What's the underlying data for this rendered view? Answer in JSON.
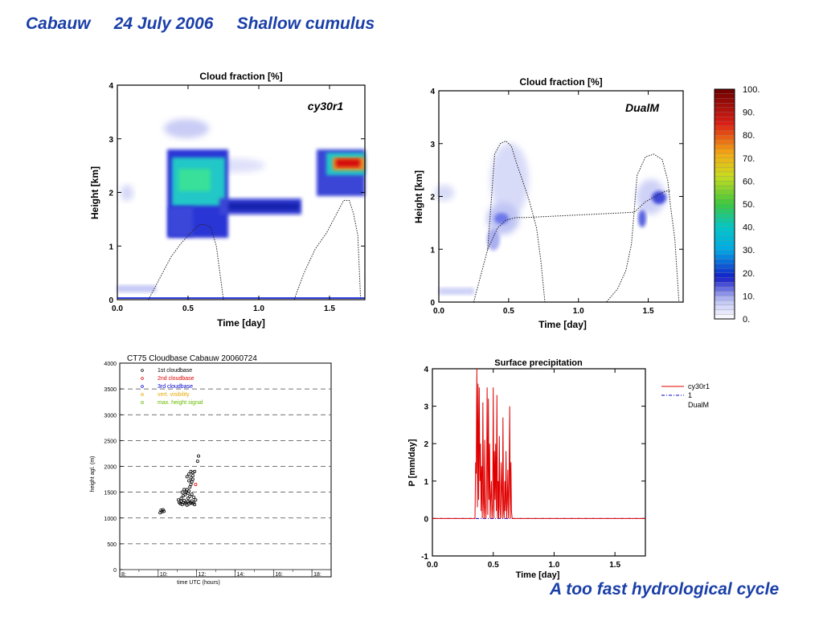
{
  "slide": {
    "title_parts": [
      "Cabauw",
      "24 July 2006",
      "Shallow cumulus"
    ],
    "conclusion": "A too fast hydrological cycle"
  },
  "colors": {
    "title_blue": "#1a3fa8",
    "cy30r1_line": "#e00000",
    "dualm_line": "#0000cc"
  },
  "colorbar": {
    "labels": [
      "100.",
      "90.",
      "80.",
      "70.",
      "60.",
      "50.",
      "40.",
      "30.",
      "20.",
      "10.",
      "0."
    ]
  },
  "chart_data": [
    {
      "id": "cy30r1",
      "type": "heatmap",
      "title": "Cloud fraction  [%]",
      "model_label": "cy30r1",
      "xlabel": "Time  [day]",
      "ylabel": "Height  [km]",
      "xlim": [
        0.0,
        1.75
      ],
      "ylim": [
        0,
        4
      ],
      "x_ticks": [
        "0.0",
        "0.5",
        "1.0",
        "1.5"
      ],
      "y_ticks": [
        "0",
        "1",
        "2",
        "3",
        "4"
      ],
      "cloud_boundary_layer_top_km": {
        "x": [
          0.22,
          0.3,
          0.38,
          0.45,
          0.52,
          0.58,
          0.62,
          0.66,
          0.7,
          0.75,
          1.25,
          1.32,
          1.4,
          1.48,
          1.55,
          1.6,
          1.64,
          1.67,
          1.7,
          1.72
        ],
        "y": [
          0.0,
          0.4,
          0.8,
          1.05,
          1.25,
          1.4,
          1.4,
          1.35,
          1.0,
          0.0,
          0.0,
          0.5,
          0.95,
          1.25,
          1.6,
          1.85,
          1.85,
          1.6,
          1.2,
          0.0
        ]
      }
    },
    {
      "id": "dualm",
      "type": "heatmap",
      "title": "Cloud fraction  [%]",
      "model_label": "DualM",
      "xlabel": "Time  [day]",
      "ylabel": "Height  [km]",
      "xlim": [
        0.0,
        1.75
      ],
      "ylim": [
        0,
        4
      ],
      "x_ticks": [
        "0.0",
        "0.5",
        "1.0",
        "1.5"
      ],
      "y_ticks": [
        "0",
        "1",
        "2",
        "3",
        "4"
      ],
      "cloud_top_km": {
        "x": [
          0.25,
          0.3,
          0.35,
          0.4,
          0.44,
          0.48,
          0.52,
          0.56,
          0.6,
          0.65,
          0.7,
          0.73,
          0.76,
          1.2,
          1.28,
          1.34,
          1.38,
          1.42,
          1.48,
          1.54,
          1.6,
          1.64,
          1.66,
          1.69,
          1.72
        ],
        "y": [
          0.0,
          0.5,
          1.0,
          2.8,
          3.0,
          3.05,
          2.95,
          2.6,
          2.3,
          1.9,
          1.4,
          0.8,
          0.0,
          0.0,
          0.25,
          0.6,
          1.1,
          2.4,
          2.75,
          2.8,
          2.7,
          2.3,
          1.8,
          1.2,
          0.0
        ]
      },
      "cloud_base_km": {
        "x": [
          0.35,
          0.42,
          0.48,
          0.55,
          0.62,
          1.4,
          1.48,
          1.55,
          1.62,
          1.66
        ],
        "y": [
          1.0,
          1.4,
          1.55,
          1.6,
          1.6,
          1.7,
          1.9,
          2.0,
          2.1,
          2.1
        ]
      }
    },
    {
      "id": "ct75",
      "type": "scatter",
      "title": "CT75 Cloudbase Cabauw 20060724",
      "xlabel": "time UTC (hours)",
      "ylabel": "height agl. (m)",
      "xlim": [
        8,
        19
      ],
      "ylim": [
        0,
        4000
      ],
      "x_ticks": [
        "8:",
        "10:",
        "12:",
        "14:",
        "16:",
        "18:"
      ],
      "y_ticks": [
        "0",
        "500",
        "1000",
        "1500",
        "2000",
        "2500",
        "3000",
        "3500",
        "4000"
      ],
      "legend": [
        {
          "label": "1st cloudbase",
          "color": "#000000"
        },
        {
          "label": "2nd cloudbase",
          "color": "#e00000"
        },
        {
          "label": "3rd cloudbase",
          "color": "#0000cc"
        },
        {
          "label": "vert. visibility",
          "color": "#e6a800"
        },
        {
          "label": "max. height signal",
          "color": "#66bb00"
        }
      ],
      "series": [
        {
          "name": "1st cloudbase",
          "x": [
            10.1,
            10.15,
            10.2,
            10.25,
            10.3,
            11.05,
            11.1,
            11.15,
            11.2,
            11.25,
            11.3,
            11.35,
            11.4,
            11.45,
            11.5,
            11.55,
            11.6,
            11.65,
            11.7,
            11.75,
            11.8,
            11.85,
            11.9,
            11.95,
            11.4,
            11.45,
            11.5,
            11.55,
            11.6,
            11.65,
            11.7,
            11.75,
            11.8,
            11.5,
            11.6,
            11.7,
            11.8,
            11.55,
            11.65,
            11.75,
            11.85,
            11.6,
            11.7,
            11.8,
            11.9,
            12.05,
            12.1,
            11.25,
            11.3,
            11.2,
            11.35
          ],
          "y": [
            1100,
            1150,
            1120,
            1160,
            1130,
            1350,
            1300,
            1280,
            1320,
            1260,
            1300,
            1340,
            1280,
            1300,
            1250,
            1320,
            1270,
            1310,
            1290,
            1330,
            1280,
            1300,
            1260,
            1350,
            1450,
            1500,
            1550,
            1480,
            1520,
            1600,
            1650,
            1700,
            1750,
            1800,
            1850,
            1900,
            1820,
            1380,
            1420,
            1460,
            1400,
            1720,
            1780,
            1880,
            1900,
            2100,
            2200,
            1500,
            1430,
            1380,
            1550
          ]
        },
        {
          "name": "2nd cloudbase",
          "x": [
            11.95
          ],
          "y": [
            1650
          ]
        }
      ]
    },
    {
      "id": "surface-precip",
      "type": "line",
      "title": "Surface precipitation",
      "xlabel": "Time  [day]",
      "ylabel": "P  [mm/day]",
      "xlim": [
        0.0,
        1.75
      ],
      "ylim": [
        -1,
        4
      ],
      "x_ticks": [
        "0.0",
        "0.5",
        "1.0",
        "1.5"
      ],
      "y_ticks": [
        "-1",
        "0",
        "1",
        "2",
        "3",
        "4"
      ],
      "legend": [
        "cy30r1",
        "1",
        "DualM"
      ],
      "series": [
        {
          "name": "cy30r1",
          "color": "#e00000",
          "x": [
            0.0,
            0.35,
            0.355,
            0.36,
            0.365,
            0.37,
            0.375,
            0.38,
            0.385,
            0.39,
            0.395,
            0.4,
            0.405,
            0.41,
            0.415,
            0.42,
            0.425,
            0.43,
            0.435,
            0.44,
            0.445,
            0.45,
            0.455,
            0.46,
            0.465,
            0.47,
            0.475,
            0.48,
            0.485,
            0.49,
            0.495,
            0.5,
            0.505,
            0.51,
            0.515,
            0.52,
            0.525,
            0.53,
            0.535,
            0.54,
            0.545,
            0.55,
            0.555,
            0.56,
            0.565,
            0.57,
            0.575,
            0.58,
            0.585,
            0.59,
            0.595,
            0.6,
            0.605,
            0.61,
            0.615,
            0.62,
            0.625,
            0.63,
            0.635,
            0.64,
            0.645,
            0.65,
            0.655,
            0.66,
            1.75
          ],
          "y": [
            0.0,
            0.0,
            1.5,
            1.2,
            4.0,
            0.3,
            3.6,
            0.5,
            3.5,
            1.0,
            2.0,
            0.2,
            1.4,
            0.0,
            3.1,
            0.4,
            0.0,
            2.1,
            0.3,
            0.0,
            0.8,
            3.5,
            0.1,
            3.2,
            0.5,
            2.0,
            0.0,
            0.6,
            1.0,
            0.0,
            0.3,
            3.5,
            0.0,
            1.8,
            0.5,
            2.0,
            0.2,
            3.3,
            0.0,
            1.0,
            0.0,
            2.2,
            0.3,
            0.0,
            1.5,
            0.8,
            0.0,
            2.7,
            0.2,
            0.0,
            1.0,
            0.2,
            1.8,
            0.0,
            0.4,
            1.3,
            0.0,
            0.9,
            3.0,
            0.0,
            1.5,
            0.2,
            0.0,
            0.0,
            0.0
          ]
        },
        {
          "name": "DualM",
          "color": "#0000cc",
          "x": [
            0.0,
            1.75
          ],
          "y": [
            0.0,
            0.0
          ]
        }
      ]
    }
  ]
}
